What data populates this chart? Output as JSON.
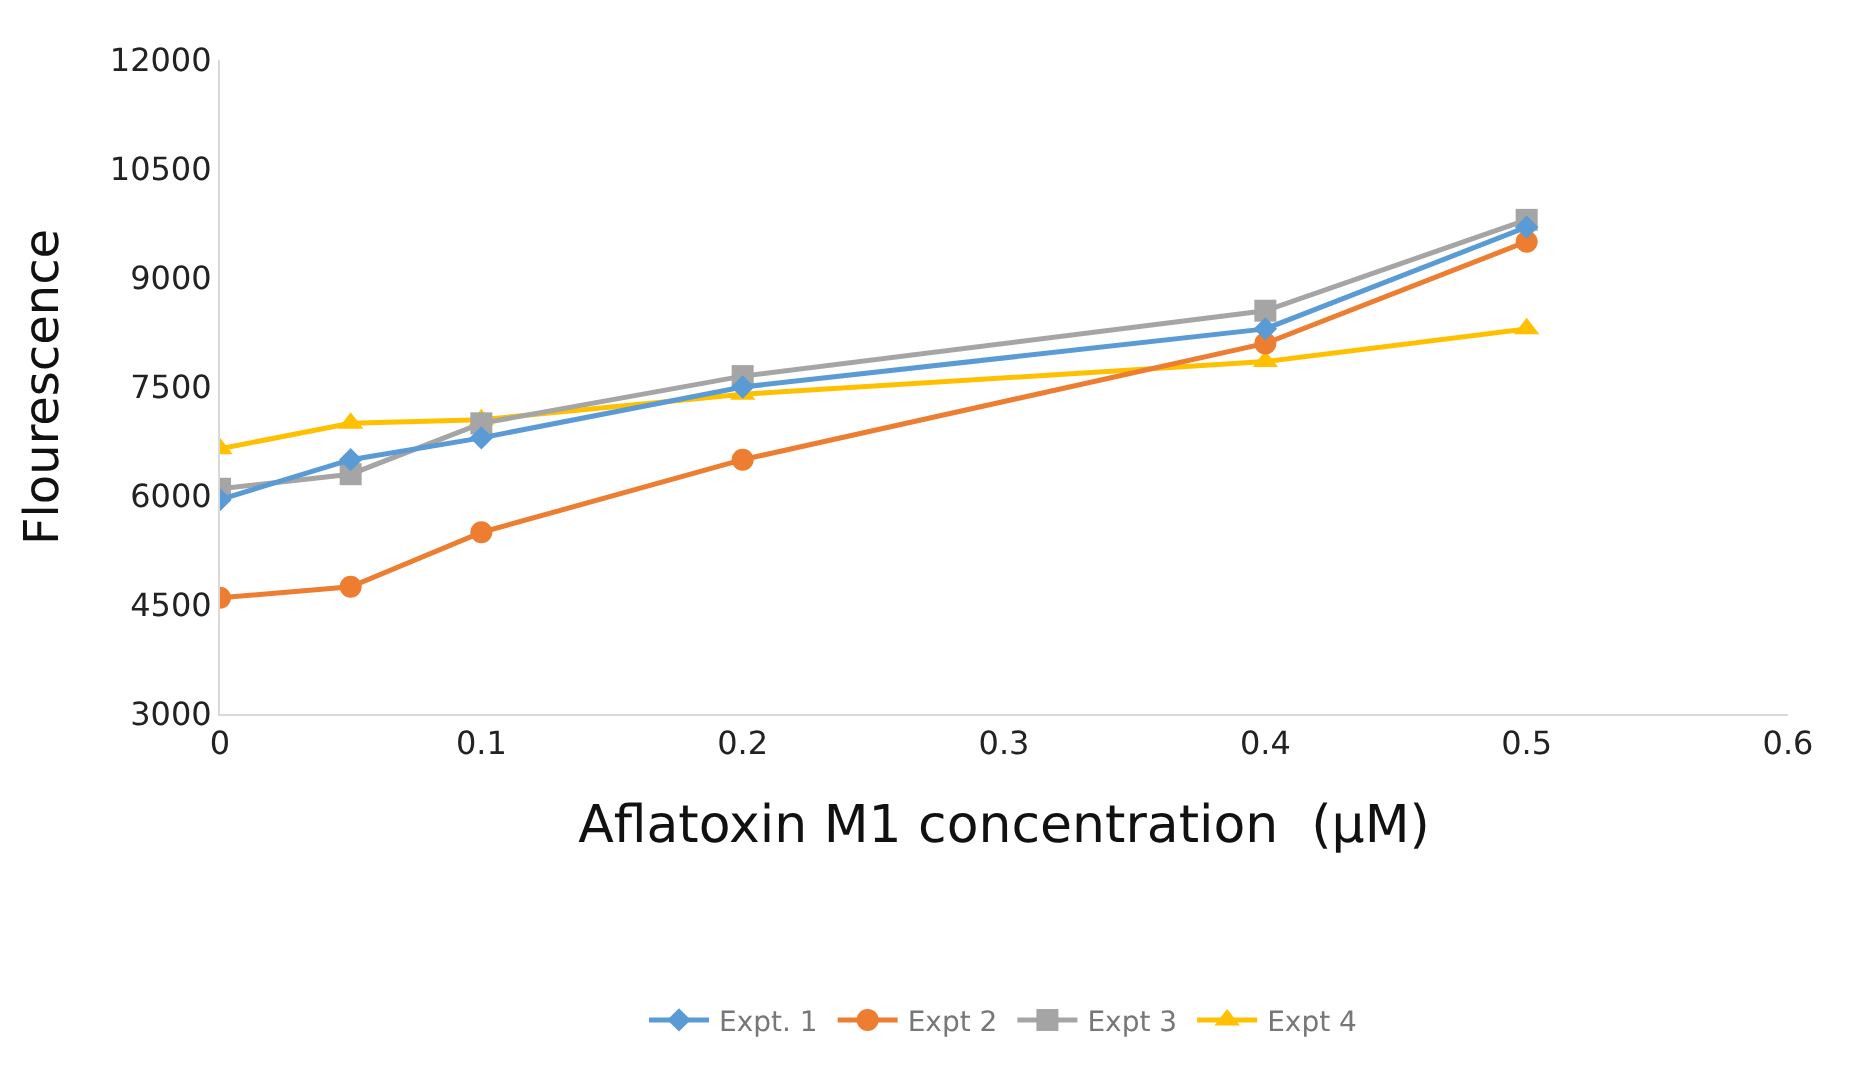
{
  "chart_data": {
    "type": "line",
    "xlabel": "Aflatoxin M1 concentration  (µM)",
    "ylabel": "Flourescence",
    "x": [
      0,
      0.05,
      0.1,
      0.2,
      0.4,
      0.5
    ],
    "xlim": [
      0,
      0.6
    ],
    "xticks": [
      0,
      0.1,
      0.2,
      0.3,
      0.4,
      0.5,
      0.6
    ],
    "ylim": [
      3000,
      12000
    ],
    "yticks": [
      3000,
      4500,
      6000,
      7500,
      9000,
      10500,
      12000
    ],
    "grid": false,
    "legend": "bottom",
    "series": [
      {
        "name": "Expt. 1",
        "color": "#5b9bd5",
        "marker": "diamond",
        "values": [
          5950,
          6500,
          6800,
          7500,
          8300,
          9700
        ]
      },
      {
        "name": "Expt 2",
        "color": "#ed7d31",
        "marker": "circle",
        "values": [
          4600,
          4750,
          5500,
          6500,
          8100,
          9500
        ]
      },
      {
        "name": "Expt 3",
        "color": "#a5a5a5",
        "marker": "square",
        "values": [
          6100,
          6300,
          7000,
          7650,
          8550,
          9800
        ]
      },
      {
        "name": "Expt 4",
        "color": "#ffc000",
        "marker": "triangle",
        "values": [
          6650,
          7000,
          7050,
          7400,
          7850,
          8300
        ]
      }
    ]
  }
}
